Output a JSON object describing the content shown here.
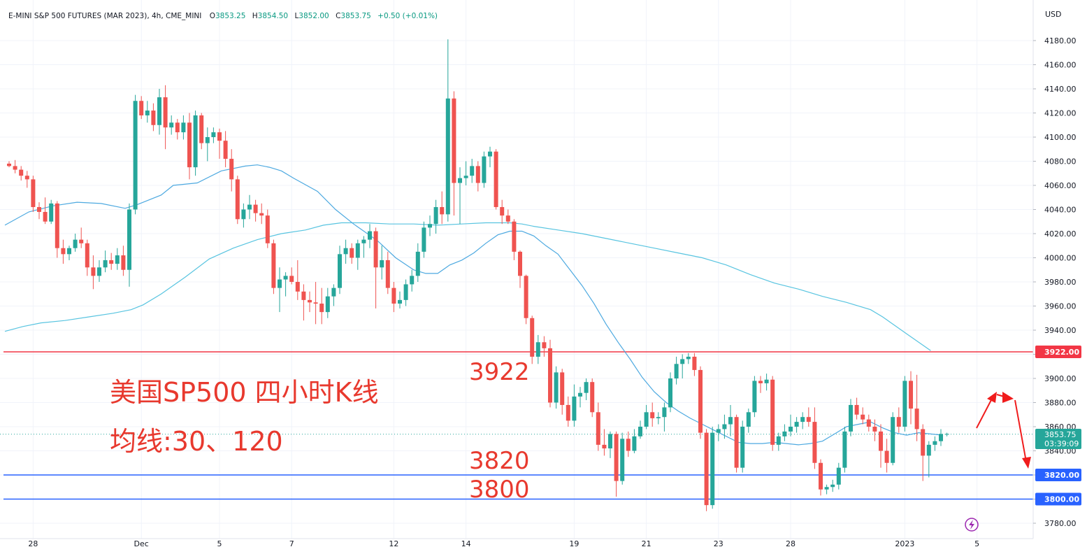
{
  "header": {
    "symbol": "E-MINI S&P 500 FUTURES (MAR 2023), 4h, CME_MINI",
    "open_label": "O",
    "open": "3853.25",
    "high_label": "H",
    "high": "3854.50",
    "low_label": "L",
    "low": "3852.00",
    "close_label": "C",
    "close": "3853.75",
    "change": "+0.50 (+0.01%)"
  },
  "currency": "USD",
  "price_tag": {
    "price": "3853.75",
    "countdown": "03:39:09"
  },
  "annotations": {
    "title_line1": "美国SP500 四小时K线",
    "title_line2": "均线:30、120",
    "level_3922": "3922",
    "level_3820": "3820",
    "level_3800": "3800"
  },
  "colors": {
    "up": "#26a69a",
    "down": "#ef5350",
    "resistance": "#f23645",
    "support": "#2962ff",
    "ma30": "#4da9e0",
    "ma120": "#58c4e0",
    "annotation": "#e8392e",
    "arrow": "#f01c1c"
  },
  "chart_data": {
    "type": "candlestick",
    "interval": "4h",
    "ylim": [
      3770,
      4190
    ],
    "y_ticks": [
      "3780.00",
      "3800.00",
      "3820.00",
      "3840.00",
      "3860.00",
      "3880.00",
      "3900.00",
      "3920.00",
      "3940.00",
      "3960.00",
      "3980.00",
      "4000.00",
      "4020.00",
      "4040.00",
      "4060.00",
      "4080.00",
      "4100.00",
      "4120.00",
      "4140.00",
      "4160.00",
      "4180.00"
    ],
    "x_labels": [
      {
        "label": "28",
        "index": 4
      },
      {
        "label": "Dec",
        "index": 22
      },
      {
        "label": "5",
        "index": 35
      },
      {
        "label": "7",
        "index": 47
      },
      {
        "label": "12",
        "index": 64
      },
      {
        "label": "14",
        "index": 76
      },
      {
        "label": "19",
        "index": 94
      },
      {
        "label": "21",
        "index": 106
      },
      {
        "label": "23",
        "index": 118
      },
      {
        "label": "28",
        "index": 130
      },
      {
        "label": "2023",
        "index": 149
      },
      {
        "label": "5",
        "index": 161
      }
    ],
    "horizontal_lines": [
      {
        "price": 3922,
        "label": "3922.00",
        "color": "red"
      },
      {
        "price": 3820,
        "label": "3820.00",
        "color": "blue"
      },
      {
        "price": 3800,
        "label": "3800.00",
        "color": "blue"
      }
    ],
    "candles": [
      [
        4078,
        4080,
        4075,
        4076
      ],
      [
        4076,
        4081,
        4070,
        4073
      ],
      [
        4073,
        4076,
        4064,
        4068
      ],
      [
        4068,
        4072,
        4058,
        4065
      ],
      [
        4065,
        4068,
        4038,
        4042
      ],
      [
        4042,
        4046,
        4032,
        4038
      ],
      [
        4038,
        4050,
        4028,
        4030
      ],
      [
        4030,
        4048,
        4028,
        4045
      ],
      [
        4045,
        4047,
        4000,
        4008
      ],
      [
        4008,
        4015,
        3995,
        4003
      ],
      [
        4003,
        4010,
        3998,
        4008
      ],
      [
        4008,
        4020,
        4005,
        4015
      ],
      [
        4015,
        4025,
        4008,
        4012
      ],
      [
        4012,
        4015,
        3985,
        3992
      ],
      [
        3992,
        4002,
        3974,
        3985
      ],
      [
        3985,
        3998,
        3980,
        3992
      ],
      [
        3992,
        4006,
        3988,
        3998
      ],
      [
        3998,
        4004,
        3990,
        3995
      ],
      [
        3995,
        4008,
        3990,
        4002
      ],
      [
        4002,
        4010,
        3985,
        3990
      ],
      [
        3990,
        4045,
        3976,
        4040
      ],
      [
        4040,
        4135,
        4036,
        4130
      ],
      [
        4130,
        4134,
        4115,
        4118
      ],
      [
        4118,
        4130,
        4112,
        4122
      ],
      [
        4122,
        4128,
        4105,
        4110
      ],
      [
        4110,
        4140,
        4102,
        4133
      ],
      [
        4133,
        4143,
        4090,
        4108
      ],
      [
        4108,
        4118,
        4102,
        4112
      ],
      [
        4112,
        4115,
        4098,
        4104
      ],
      [
        4104,
        4118,
        4098,
        4112
      ],
      [
        4112,
        4120,
        4065,
        4075
      ],
      [
        4075,
        4122,
        4068,
        4118
      ],
      [
        4118,
        4120,
        4090,
        4095
      ],
      [
        4095,
        4108,
        4080,
        4100
      ],
      [
        4100,
        4108,
        4095,
        4104
      ],
      [
        4104,
        4107,
        4082,
        4097
      ],
      [
        4097,
        4105,
        4075,
        4082
      ],
      [
        4082,
        4090,
        4055,
        4065
      ],
      [
        4065,
        4068,
        4028,
        4032
      ],
      [
        4032,
        4045,
        4025,
        4040
      ],
      [
        4040,
        4052,
        4032,
        4044
      ],
      [
        4044,
        4048,
        4030,
        4037
      ],
      [
        4037,
        4045,
        4028,
        4035
      ],
      [
        4035,
        4040,
        4008,
        4012
      ],
      [
        4012,
        4015,
        3970,
        3975
      ],
      [
        3975,
        3992,
        3955,
        3982
      ],
      [
        3982,
        3988,
        3968,
        3985
      ],
      [
        3985,
        3992,
        3978,
        3980
      ],
      [
        3980,
        3998,
        3965,
        3972
      ],
      [
        3972,
        3978,
        3948,
        3965
      ],
      [
        3965,
        3972,
        3955,
        3963
      ],
      [
        3963,
        3980,
        3945,
        3962
      ],
      [
        3962,
        3975,
        3945,
        3955
      ],
      [
        3955,
        3975,
        3950,
        3968
      ],
      [
        3968,
        3978,
        3960,
        3975
      ],
      [
        3975,
        4010,
        3970,
        4003
      ],
      [
        4003,
        4015,
        3995,
        4008
      ],
      [
        4008,
        4012,
        3995,
        4000
      ],
      [
        4000,
        4015,
        3990,
        4012
      ],
      [
        4012,
        4018,
        4000,
        4015
      ],
      [
        4015,
        4028,
        4008,
        4022
      ],
      [
        4022,
        4025,
        3958,
        3992
      ],
      [
        3992,
        4010,
        3982,
        3998
      ],
      [
        3998,
        4005,
        3970,
        3975
      ],
      [
        3975,
        3980,
        3955,
        3962
      ],
      [
        3962,
        3972,
        3958,
        3965
      ],
      [
        3965,
        3982,
        3960,
        3978
      ],
      [
        3978,
        3990,
        3972,
        3985
      ],
      [
        3985,
        4012,
        3980,
        4005
      ],
      [
        4005,
        4030,
        4000,
        4025
      ],
      [
        4025,
        4035,
        4018,
        4028
      ],
      [
        4028,
        4048,
        4020,
        4042
      ],
      [
        4042,
        4055,
        4028,
        4036
      ],
      [
        4036,
        4181,
        4030,
        4132
      ],
      [
        4132,
        4138,
        4035,
        4062
      ],
      [
        4062,
        4075,
        4028,
        4066
      ],
      [
        4066,
        4080,
        4060,
        4068
      ],
      [
        4068,
        4082,
        4062,
        4076
      ],
      [
        4076,
        4080,
        4055,
        4062
      ],
      [
        4062,
        4088,
        4058,
        4084
      ],
      [
        4084,
        4092,
        4075,
        4088
      ],
      [
        4088,
        4090,
        4040,
        4042
      ],
      [
        4042,
        4048,
        4028,
        4035
      ],
      [
        4035,
        4040,
        4028,
        4030
      ],
      [
        4030,
        4032,
        3998,
        4005
      ],
      [
        4005,
        4006,
        3975,
        3985
      ],
      [
        3985,
        3986,
        3945,
        3950
      ],
      [
        3950,
        3952,
        3912,
        3918
      ],
      [
        3918,
        3936,
        3912,
        3930
      ],
      [
        3930,
        3935,
        3918,
        3925
      ],
      [
        3925,
        3932,
        3876,
        3880
      ],
      [
        3880,
        3910,
        3875,
        3905
      ],
      [
        3905,
        3908,
        3870,
        3878
      ],
      [
        3878,
        3885,
        3860,
        3865
      ],
      [
        3865,
        3895,
        3860,
        3885
      ],
      [
        3885,
        3893,
        3876,
        3888
      ],
      [
        3888,
        3900,
        3882,
        3897
      ],
      [
        3897,
        3900,
        3868,
        3872
      ],
      [
        3872,
        3880,
        3840,
        3845
      ],
      [
        3845,
        3858,
        3836,
        3842
      ],
      [
        3842,
        3856,
        3834,
        3854
      ],
      [
        3854,
        3856,
        3802,
        3815
      ],
      [
        3815,
        3855,
        3812,
        3850
      ],
      [
        3850,
        3856,
        3835,
        3840
      ],
      [
        3840,
        3858,
        3838,
        3852
      ],
      [
        3852,
        3865,
        3850,
        3860
      ],
      [
        3860,
        3878,
        3858,
        3872
      ],
      [
        3872,
        3880,
        3860,
        3867
      ],
      [
        3867,
        3872,
        3862,
        3868
      ],
      [
        3868,
        3880,
        3856,
        3876
      ],
      [
        3876,
        3905,
        3872,
        3900
      ],
      [
        3900,
        3918,
        3895,
        3912
      ],
      [
        3912,
        3920,
        3900,
        3916
      ],
      [
        3916,
        3921,
        3912,
        3918
      ],
      [
        3918,
        3921,
        3902,
        3907
      ],
      [
        3907,
        3910,
        3850,
        3855
      ],
      [
        3855,
        3858,
        3790,
        3795
      ],
      [
        3795,
        3860,
        3792,
        3855
      ],
      [
        3855,
        3862,
        3848,
        3858
      ],
      [
        3858,
        3870,
        3850,
        3862
      ],
      [
        3862,
        3878,
        3852,
        3868
      ],
      [
        3868,
        3870,
        3822,
        3826
      ],
      [
        3826,
        3865,
        3822,
        3860
      ],
      [
        3860,
        3875,
        3855,
        3872
      ],
      [
        3872,
        3902,
        3868,
        3898
      ],
      [
        3898,
        3902,
        3888,
        3896
      ],
      [
        3896,
        3904,
        3890,
        3899
      ],
      [
        3899,
        3902,
        3840,
        3845
      ],
      [
        3845,
        3855,
        3840,
        3852
      ],
      [
        3852,
        3862,
        3848,
        3856
      ],
      [
        3856,
        3870,
        3852,
        3860
      ],
      [
        3860,
        3868,
        3855,
        3864
      ],
      [
        3864,
        3872,
        3858,
        3868
      ],
      [
        3868,
        3876,
        3860,
        3864
      ],
      [
        3864,
        3876,
        3825,
        3830
      ],
      [
        3830,
        3833,
        3803,
        3808
      ],
      [
        3808,
        3812,
        3804,
        3810
      ],
      [
        3810,
        3816,
        3806,
        3812
      ],
      [
        3812,
        3830,
        3808,
        3826
      ],
      [
        3826,
        3860,
        3822,
        3856
      ],
      [
        3856,
        3883,
        3852,
        3878
      ],
      [
        3878,
        3884,
        3866,
        3870
      ],
      [
        3870,
        3876,
        3862,
        3866
      ],
      [
        3866,
        3870,
        3856,
        3860
      ],
      [
        3860,
        3866,
        3848,
        3856
      ],
      [
        3856,
        3862,
        3826,
        3840
      ],
      [
        3840,
        3850,
        3822,
        3830
      ],
      [
        3830,
        3872,
        3828,
        3868
      ],
      [
        3868,
        3876,
        3855,
        3860
      ],
      [
        3860,
        3902,
        3856,
        3898
      ],
      [
        3898,
        3906,
        3862,
        3875
      ],
      [
        3875,
        3903,
        3848,
        3858
      ],
      [
        3858,
        3862,
        3815,
        3836
      ],
      [
        3836,
        3848,
        3818,
        3845
      ],
      [
        3845,
        3852,
        3840,
        3848
      ],
      [
        3848,
        3858,
        3844,
        3854
      ],
      [
        3854,
        3855,
        3852,
        3854
      ]
    ],
    "ma30": [
      [
        0,
        4027
      ],
      [
        4,
        4038
      ],
      [
        8,
        4043
      ],
      [
        12,
        4046
      ],
      [
        16,
        4045
      ],
      [
        20,
        4041
      ],
      [
        22,
        4044
      ],
      [
        26,
        4052
      ],
      [
        28,
        4060
      ],
      [
        32,
        4062
      ],
      [
        36,
        4072
      ],
      [
        40,
        4076
      ],
      [
        42,
        4077
      ],
      [
        44,
        4075
      ],
      [
        46,
        4072
      ],
      [
        48,
        4066
      ],
      [
        52,
        4055
      ],
      [
        55,
        4040
      ],
      [
        58,
        4028
      ],
      [
        62,
        4014
      ],
      [
        65,
        4000
      ],
      [
        68,
        3990
      ],
      [
        70,
        3987
      ],
      [
        72,
        3987
      ],
      [
        74,
        3994
      ],
      [
        76,
        3998
      ],
      [
        78,
        4004
      ],
      [
        80,
        4012
      ],
      [
        82,
        4019
      ],
      [
        84,
        4022
      ],
      [
        86,
        4022
      ],
      [
        88,
        4018
      ],
      [
        90,
        4010
      ],
      [
        92,
        4003
      ],
      [
        94,
        3990
      ],
      [
        96,
        3977
      ],
      [
        98,
        3962
      ],
      [
        100,
        3945
      ],
      [
        102,
        3930
      ],
      [
        104,
        3916
      ],
      [
        106,
        3901
      ],
      [
        108,
        3889
      ],
      [
        110,
        3880
      ],
      [
        112,
        3873
      ],
      [
        114,
        3867
      ],
      [
        116,
        3862
      ],
      [
        118,
        3857
      ],
      [
        120,
        3852
      ],
      [
        122,
        3847
      ],
      [
        124,
        3846
      ],
      [
        126,
        3846
      ],
      [
        128,
        3847
      ],
      [
        130,
        3846
      ],
      [
        132,
        3845
      ],
      [
        134,
        3846
      ],
      [
        136,
        3848
      ],
      [
        138,
        3854
      ],
      [
        140,
        3860
      ],
      [
        142,
        3862
      ],
      [
        144,
        3864
      ],
      [
        146,
        3859
      ],
      [
        148,
        3855
      ],
      [
        150,
        3853
      ],
      [
        152,
        3855
      ],
      [
        154,
        3854
      ],
      [
        156,
        3853
      ]
    ],
    "ma120": [
      [
        0,
        3939
      ],
      [
        3,
        3943
      ],
      [
        6,
        3946
      ],
      [
        10,
        3948
      ],
      [
        14,
        3951
      ],
      [
        18,
        3954
      ],
      [
        21,
        3957
      ],
      [
        23,
        3961
      ],
      [
        26,
        3970
      ],
      [
        30,
        3984
      ],
      [
        34,
        3999
      ],
      [
        38,
        4008
      ],
      [
        42,
        4015
      ],
      [
        46,
        4020
      ],
      [
        50,
        4023
      ],
      [
        53,
        4027
      ],
      [
        56,
        4029
      ],
      [
        60,
        4029
      ],
      [
        64,
        4028
      ],
      [
        68,
        4028
      ],
      [
        72,
        4027
      ],
      [
        76,
        4028
      ],
      [
        80,
        4029
      ],
      [
        84,
        4029
      ],
      [
        86,
        4028
      ],
      [
        88,
        4026
      ],
      [
        92,
        4023
      ],
      [
        96,
        4020
      ],
      [
        100,
        4016
      ],
      [
        104,
        4012
      ],
      [
        108,
        4008
      ],
      [
        112,
        4004
      ],
      [
        116,
        4000
      ],
      [
        120,
        3994
      ],
      [
        124,
        3986
      ],
      [
        128,
        3979
      ],
      [
        132,
        3974
      ],
      [
        136,
        3968
      ],
      [
        140,
        3963
      ],
      [
        144,
        3957
      ],
      [
        146,
        3951
      ],
      [
        148,
        3944
      ],
      [
        150,
        3937
      ],
      [
        152,
        3930
      ],
      [
        154,
        3923
      ]
    ]
  }
}
